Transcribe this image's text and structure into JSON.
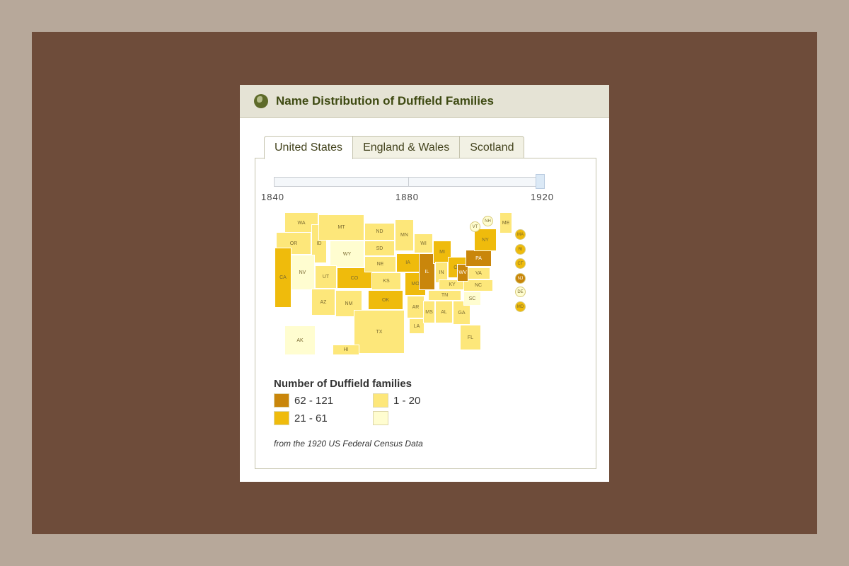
{
  "header": {
    "title": "Name Distribution of Duffield Families",
    "icon": "globe-icon"
  },
  "tabs": [
    {
      "label": "United States",
      "active": true
    },
    {
      "label": "England & Wales"
    },
    {
      "label": "Scotland"
    }
  ],
  "timeline": {
    "ticks": [
      "1840",
      "1880",
      "1920"
    ],
    "selected": "1920"
  },
  "colors": {
    "none": "#fffdd0",
    "low": "#fde77a",
    "mid": "#efbb0c",
    "high": "#c9860b"
  },
  "map": {
    "states": [
      {
        "abbr": "WA",
        "cat": 1
      },
      {
        "abbr": "OR",
        "cat": 1
      },
      {
        "abbr": "ID",
        "cat": 1
      },
      {
        "abbr": "MT",
        "cat": 1
      },
      {
        "abbr": "WY",
        "cat": 0
      },
      {
        "abbr": "NV",
        "cat": 0
      },
      {
        "abbr": "CA",
        "cat": 2
      },
      {
        "abbr": "UT",
        "cat": 1
      },
      {
        "abbr": "CO",
        "cat": 2
      },
      {
        "abbr": "AZ",
        "cat": 1
      },
      {
        "abbr": "NM",
        "cat": 1
      },
      {
        "abbr": "ND",
        "cat": 1
      },
      {
        "abbr": "SD",
        "cat": 1
      },
      {
        "abbr": "NE",
        "cat": 1
      },
      {
        "abbr": "KS",
        "cat": 1
      },
      {
        "abbr": "OK",
        "cat": 2
      },
      {
        "abbr": "TX",
        "cat": 1
      },
      {
        "abbr": "MN",
        "cat": 1
      },
      {
        "abbr": "IA",
        "cat": 2
      },
      {
        "abbr": "MO",
        "cat": 2
      },
      {
        "abbr": "AR",
        "cat": 1
      },
      {
        "abbr": "LA",
        "cat": 1
      },
      {
        "abbr": "WI",
        "cat": 1
      },
      {
        "abbr": "IL",
        "cat": 3
      },
      {
        "abbr": "MI",
        "cat": 2
      },
      {
        "abbr": "IN",
        "cat": 1
      },
      {
        "abbr": "OH",
        "cat": 2
      },
      {
        "abbr": "KY",
        "cat": 1
      },
      {
        "abbr": "TN",
        "cat": 1
      },
      {
        "abbr": "MS",
        "cat": 1
      },
      {
        "abbr": "AL",
        "cat": 1
      },
      {
        "abbr": "GA",
        "cat": 1
      },
      {
        "abbr": "FL",
        "cat": 1
      },
      {
        "abbr": "SC",
        "cat": 0
      },
      {
        "abbr": "NC",
        "cat": 1
      },
      {
        "abbr": "VA",
        "cat": 1
      },
      {
        "abbr": "WV",
        "cat": 3
      },
      {
        "abbr": "PA",
        "cat": 3
      },
      {
        "abbr": "NY",
        "cat": 2
      },
      {
        "abbr": "ME",
        "cat": 1
      },
      {
        "abbr": "AK",
        "cat": 0
      },
      {
        "abbr": "HI",
        "cat": 1
      }
    ],
    "callouts": [
      {
        "abbr": "VT",
        "cat": 0
      },
      {
        "abbr": "NH",
        "cat": 0
      },
      {
        "abbr": "MA",
        "cat": 2
      },
      {
        "abbr": "RI",
        "cat": 2
      },
      {
        "abbr": "CT",
        "cat": 2
      },
      {
        "abbr": "NJ",
        "cat": 3
      },
      {
        "abbr": "DE",
        "cat": 0
      },
      {
        "abbr": "MD",
        "cat": 2
      }
    ]
  },
  "legend": {
    "title": "Number of Duffield families",
    "items": [
      {
        "label": "62 - 121",
        "cat": 3
      },
      {
        "label": "21 - 61",
        "cat": 2
      },
      {
        "label": "1 - 20",
        "cat": 1
      },
      {
        "label": "",
        "cat": 0
      }
    ]
  },
  "source": "from the 1920 US Federal Census Data"
}
